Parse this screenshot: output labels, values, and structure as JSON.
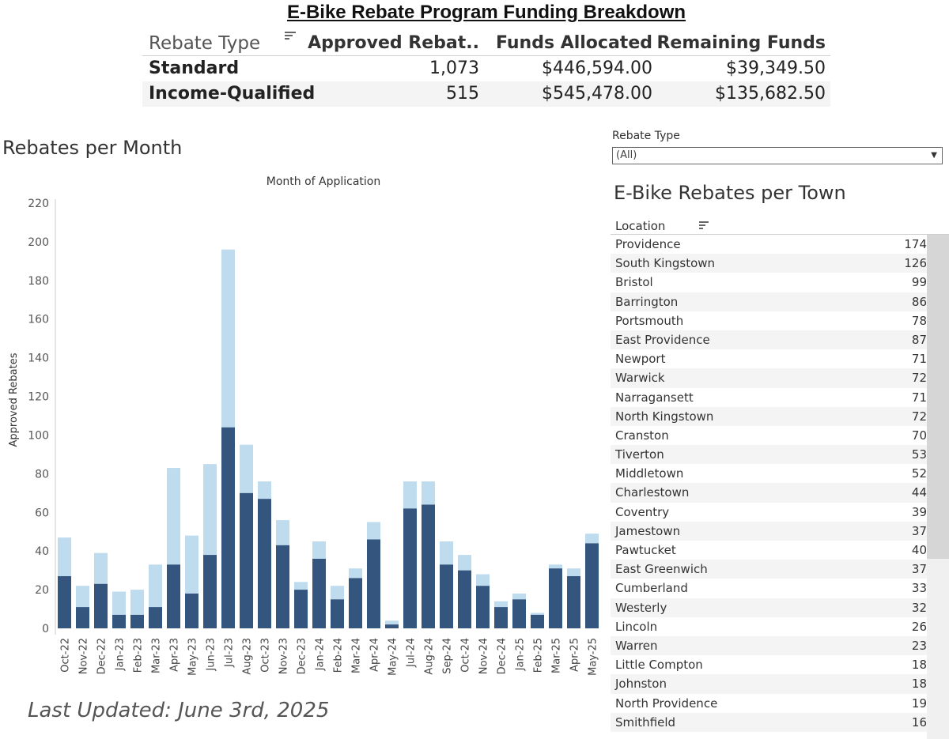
{
  "title": "E-Bike Rebate Program Funding Breakdown",
  "summary": {
    "headers": [
      "Rebate Type",
      "Approved Rebat..",
      "Funds Allocated",
      "Remaining Funds"
    ],
    "rows": [
      {
        "type": "Standard",
        "approved": "1,073",
        "allocated": "$446,594.00",
        "remaining": "$39,349.50"
      },
      {
        "type": "Income-Qualified",
        "approved": "515",
        "allocated": "$545,478.00",
        "remaining": "$135,682.50"
      }
    ]
  },
  "chart_section_title": "Rebates per Month",
  "filter": {
    "label": "Rebate Type",
    "value": "(All)"
  },
  "town_title": "E-Bike Rebates per Town",
  "town_header": "Location",
  "towns": [
    {
      "name": "Providence",
      "value": "174"
    },
    {
      "name": "South Kingstown",
      "value": "126"
    },
    {
      "name": "Bristol",
      "value": "99"
    },
    {
      "name": "Barrington",
      "value": "86"
    },
    {
      "name": "Portsmouth",
      "value": "78"
    },
    {
      "name": "East Providence",
      "value": "87"
    },
    {
      "name": "Newport",
      "value": "71"
    },
    {
      "name": "Warwick",
      "value": "72"
    },
    {
      "name": "Narragansett",
      "value": "71"
    },
    {
      "name": "North Kingstown",
      "value": "72"
    },
    {
      "name": "Cranston",
      "value": "70"
    },
    {
      "name": "Tiverton",
      "value": "53"
    },
    {
      "name": "Middletown",
      "value": "52"
    },
    {
      "name": "Charlestown",
      "value": "44"
    },
    {
      "name": "Coventry",
      "value": "39"
    },
    {
      "name": "Jamestown",
      "value": "37"
    },
    {
      "name": "Pawtucket",
      "value": "40"
    },
    {
      "name": "East Greenwich",
      "value": "37"
    },
    {
      "name": "Cumberland",
      "value": "33"
    },
    {
      "name": "Westerly",
      "value": "32"
    },
    {
      "name": "Lincoln",
      "value": "26"
    },
    {
      "name": "Warren",
      "value": "23"
    },
    {
      "name": "Little Compton",
      "value": "18"
    },
    {
      "name": "Johnston",
      "value": "18"
    },
    {
      "name": "North Providence",
      "value": "19"
    },
    {
      "name": "Smithfield",
      "value": "16"
    }
  ],
  "last_updated": "Last Updated: June 3rd, 2025",
  "colors": {
    "dark": "#34557e",
    "light": "#bfdcef"
  },
  "chart_data": {
    "type": "bar",
    "stacked": true,
    "title": "Month of Application",
    "xlabel": "",
    "ylabel": "Approved Rebates",
    "ylim": [
      0,
      220
    ],
    "yticks": [
      0,
      20,
      40,
      60,
      80,
      100,
      120,
      140,
      160,
      180,
      200,
      220
    ],
    "grid": false,
    "categories": [
      "Oct-22",
      "Nov-22",
      "Dec-22",
      "Jan-23",
      "Feb-23",
      "Mar-23",
      "Apr-23",
      "May-23",
      "Jun-23",
      "Jul-23",
      "Aug-23",
      "Oct-23",
      "Nov-23",
      "Dec-23",
      "Jan-24",
      "Feb-24",
      "Mar-24",
      "Apr-24",
      "May-24",
      "Jul-24",
      "Aug-24",
      "Sep-24",
      "Oct-24",
      "Nov-24",
      "Dec-24",
      "Jan-25",
      "Feb-25",
      "Mar-25",
      "Apr-25",
      "May-25"
    ],
    "series": [
      {
        "values": [
          27,
          11,
          23,
          7,
          7,
          11,
          33,
          18,
          38,
          104,
          70,
          67,
          43,
          20,
          36,
          15,
          26,
          46,
          2,
          62,
          64,
          33,
          30,
          22,
          11,
          15,
          7,
          31,
          27,
          44
        ]
      },
      {
        "values": [
          20,
          11,
          16,
          12,
          13,
          22,
          50,
          30,
          47,
          92,
          25,
          9,
          13,
          4,
          9,
          7,
          5,
          9,
          2,
          14,
          12,
          12,
          8,
          6,
          3,
          3,
          1,
          2,
          4,
          5
        ]
      }
    ]
  }
}
